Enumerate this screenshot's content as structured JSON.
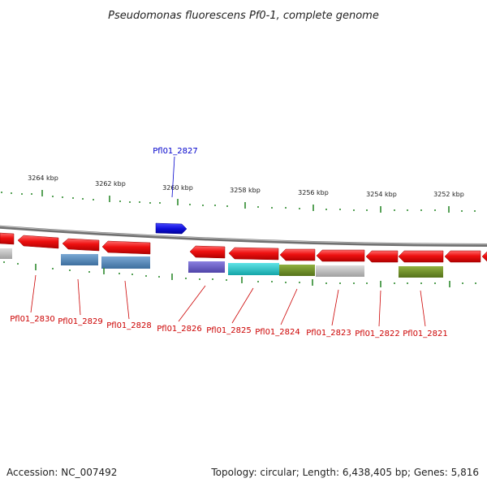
{
  "title": "Pseudomonas fluorescens Pf0-1, complete genome",
  "footer": {
    "accession": "Accession: NC_007492",
    "summary": "Topology: circular; Length: 6,438,405 bp; Genes: 5,816"
  },
  "scale": {
    "tick_color": "#2e8b2e",
    "labels": [
      "3264 kbp",
      "3262 kbp",
      "3260 kbp",
      "3258 kbp",
      "3256 kbp",
      "3254 kbp",
      "3252 kbp"
    ]
  },
  "genes": [
    {
      "name": "Pfl01_2830",
      "color": "#cc0000",
      "strand": "reverse"
    },
    {
      "name": "Pfl01_2829",
      "color": "#cc0000",
      "strand": "reverse"
    },
    {
      "name": "Pfl01_2828",
      "color": "#cc0000",
      "strand": "reverse"
    },
    {
      "name": "Pfl01_2827",
      "color": "#0000cc",
      "strand": "forward"
    },
    {
      "name": "Pfl01_2826",
      "color": "#cc0000",
      "strand": "reverse"
    },
    {
      "name": "Pfl01_2825",
      "color": "#cc0000",
      "strand": "reverse"
    },
    {
      "name": "Pfl01_2824",
      "color": "#cc0000",
      "strand": "reverse"
    },
    {
      "name": "Pfl01_2823",
      "color": "#cc0000",
      "strand": "reverse"
    },
    {
      "name": "Pfl01_2822",
      "color": "#cc0000",
      "strand": "reverse"
    },
    {
      "name": "Pfl01_2821",
      "color": "#cc0000",
      "strand": "reverse"
    }
  ],
  "colors": {
    "backbone": "#888888",
    "red_gene": "#ee1111",
    "blue_gene": "#1010dd",
    "cog_steelblue": "#4f84b8",
    "cog_purple": "#6a5acd",
    "cog_cyan": "#22c8cc",
    "cog_olive": "#6b8e23",
    "cog_gray": "#b8b8b8"
  }
}
